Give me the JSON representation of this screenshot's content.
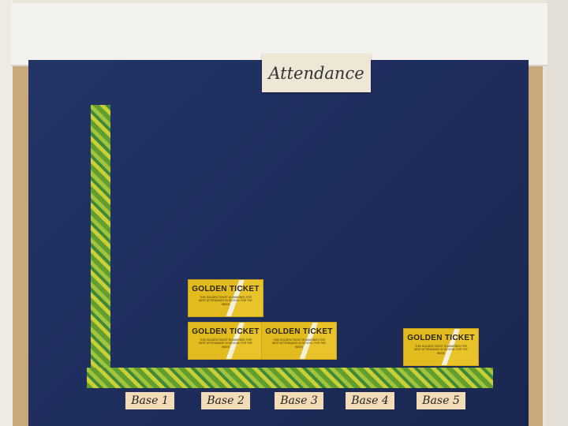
{
  "title": "Attendance",
  "ticket": {
    "heading": "GOLDEN TICKET",
    "text": "THIS GOLDEN TICKET IS AWARDED FOR BEST ATTENDANCE IN SCHOOL FOR THE WEEK"
  },
  "colors": {
    "board": "#1f2f5c",
    "ticket": "#e2bb1e",
    "border": "#c9a97c",
    "axis": "#6fa82f"
  },
  "chart_data": {
    "type": "bar",
    "title": "Attendance",
    "categories": [
      "Base 1",
      "Base 2",
      "Base 3",
      "Base 4",
      "Base 5"
    ],
    "values": [
      0,
      2,
      1,
      0,
      1
    ],
    "unit": "golden tickets",
    "grid": false
  }
}
